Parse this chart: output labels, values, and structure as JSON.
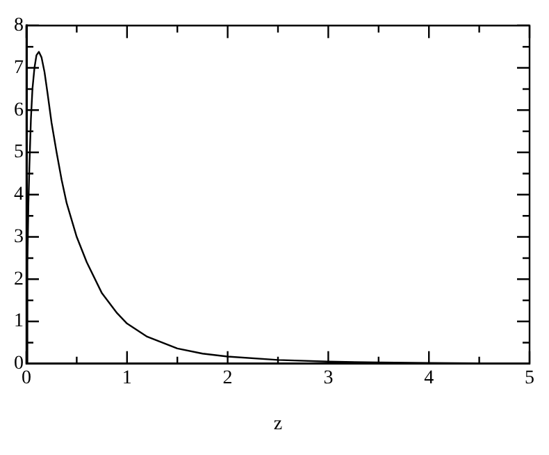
{
  "chart_data": {
    "type": "line",
    "xlabel": "z",
    "x": [
      0,
      0.01,
      0.02,
      0.03,
      0.045,
      0.06,
      0.08,
      0.1,
      0.124,
      0.15,
      0.18,
      0.21,
      0.25,
      0.3,
      0.35,
      0.4,
      0.5,
      0.6,
      0.75,
      0.9,
      1,
      1.2,
      1.5,
      1.75,
      2,
      2.5,
      3,
      3.5,
      4,
      4.5,
      5
    ],
    "series": [
      {
        "color": "#000000",
        "values": [
          0,
          2.4,
          3.8,
          4.7,
          5.8,
          6.5,
          7.0,
          7.3,
          7.38,
          7.25,
          6.9,
          6.4,
          5.7,
          5.0,
          4.35,
          3.8,
          3.0,
          2.4,
          1.67,
          1.2,
          0.95,
          0.64,
          0.36,
          0.24,
          0.17,
          0.09,
          0.05,
          0.03,
          0.02,
          0.01,
          0.01
        ]
      }
    ],
    "xlim": [
      0,
      5
    ],
    "ylim": [
      0,
      8
    ],
    "xticks": [
      0,
      {
        "value": 0.5,
        "label": null
      },
      1,
      {
        "value": 1.5,
        "label": null
      },
      2,
      {
        "value": 2.5,
        "label": null
      },
      3,
      {
        "value": 3.5,
        "label": null
      },
      4,
      {
        "value": 4.5,
        "label": null
      },
      5
    ],
    "yticks": [
      0,
      {
        "value": 0.5,
        "label": null
      },
      1,
      {
        "value": 1.5,
        "label": null
      },
      2,
      {
        "value": 2.5,
        "label": null
      },
      3,
      {
        "value": 3.5,
        "label": null
      },
      4,
      {
        "value": 4.5,
        "label": null
      },
      5,
      {
        "value": 5.5,
        "label": null
      },
      6,
      {
        "value": 6.5,
        "label": null
      },
      7,
      {
        "value": 7.5,
        "label": null
      },
      8
    ],
    "grid": false,
    "legend": false,
    "marker": "none",
    "line_style": "solid"
  }
}
